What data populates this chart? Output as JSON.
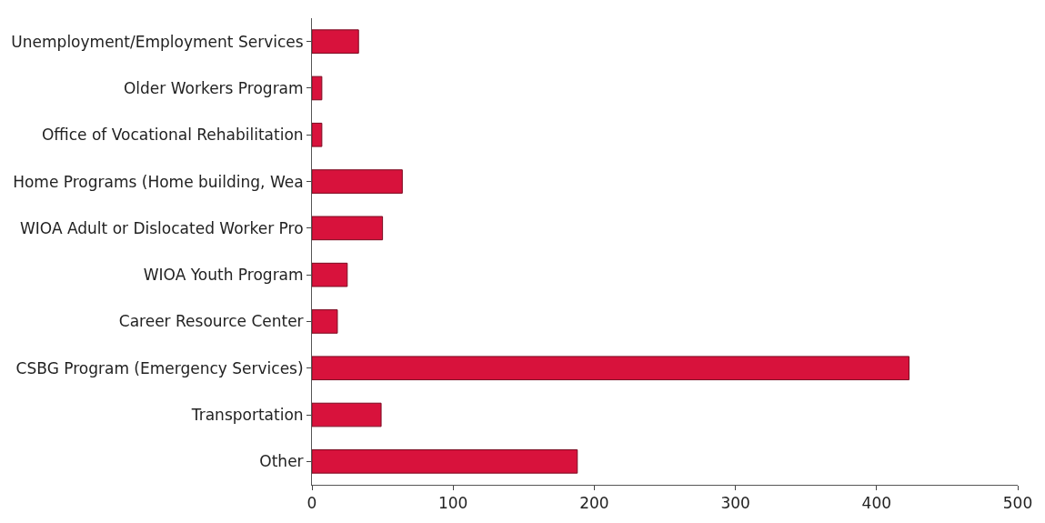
{
  "chart_data": {
    "type": "bar",
    "orientation": "horizontal",
    "categories": [
      "Unemployment/Employment Services",
      "Older Workers Program",
      "Office of Vocational Rehabilitation",
      "Home Programs (Home building, Wea",
      "WIOA Adult or Dislocated Worker Pro",
      "WIOA Youth Program",
      "Career Resource Center",
      "CSBG Program (Emergency Services)",
      "Transportation",
      "Other"
    ],
    "values": [
      33,
      7,
      7,
      64,
      50,
      25,
      18,
      423,
      49,
      188
    ],
    "color": "#d8123c",
    "xlim": [
      0,
      500
    ],
    "xticks": [
      0,
      100,
      200,
      300,
      400,
      500
    ]
  }
}
